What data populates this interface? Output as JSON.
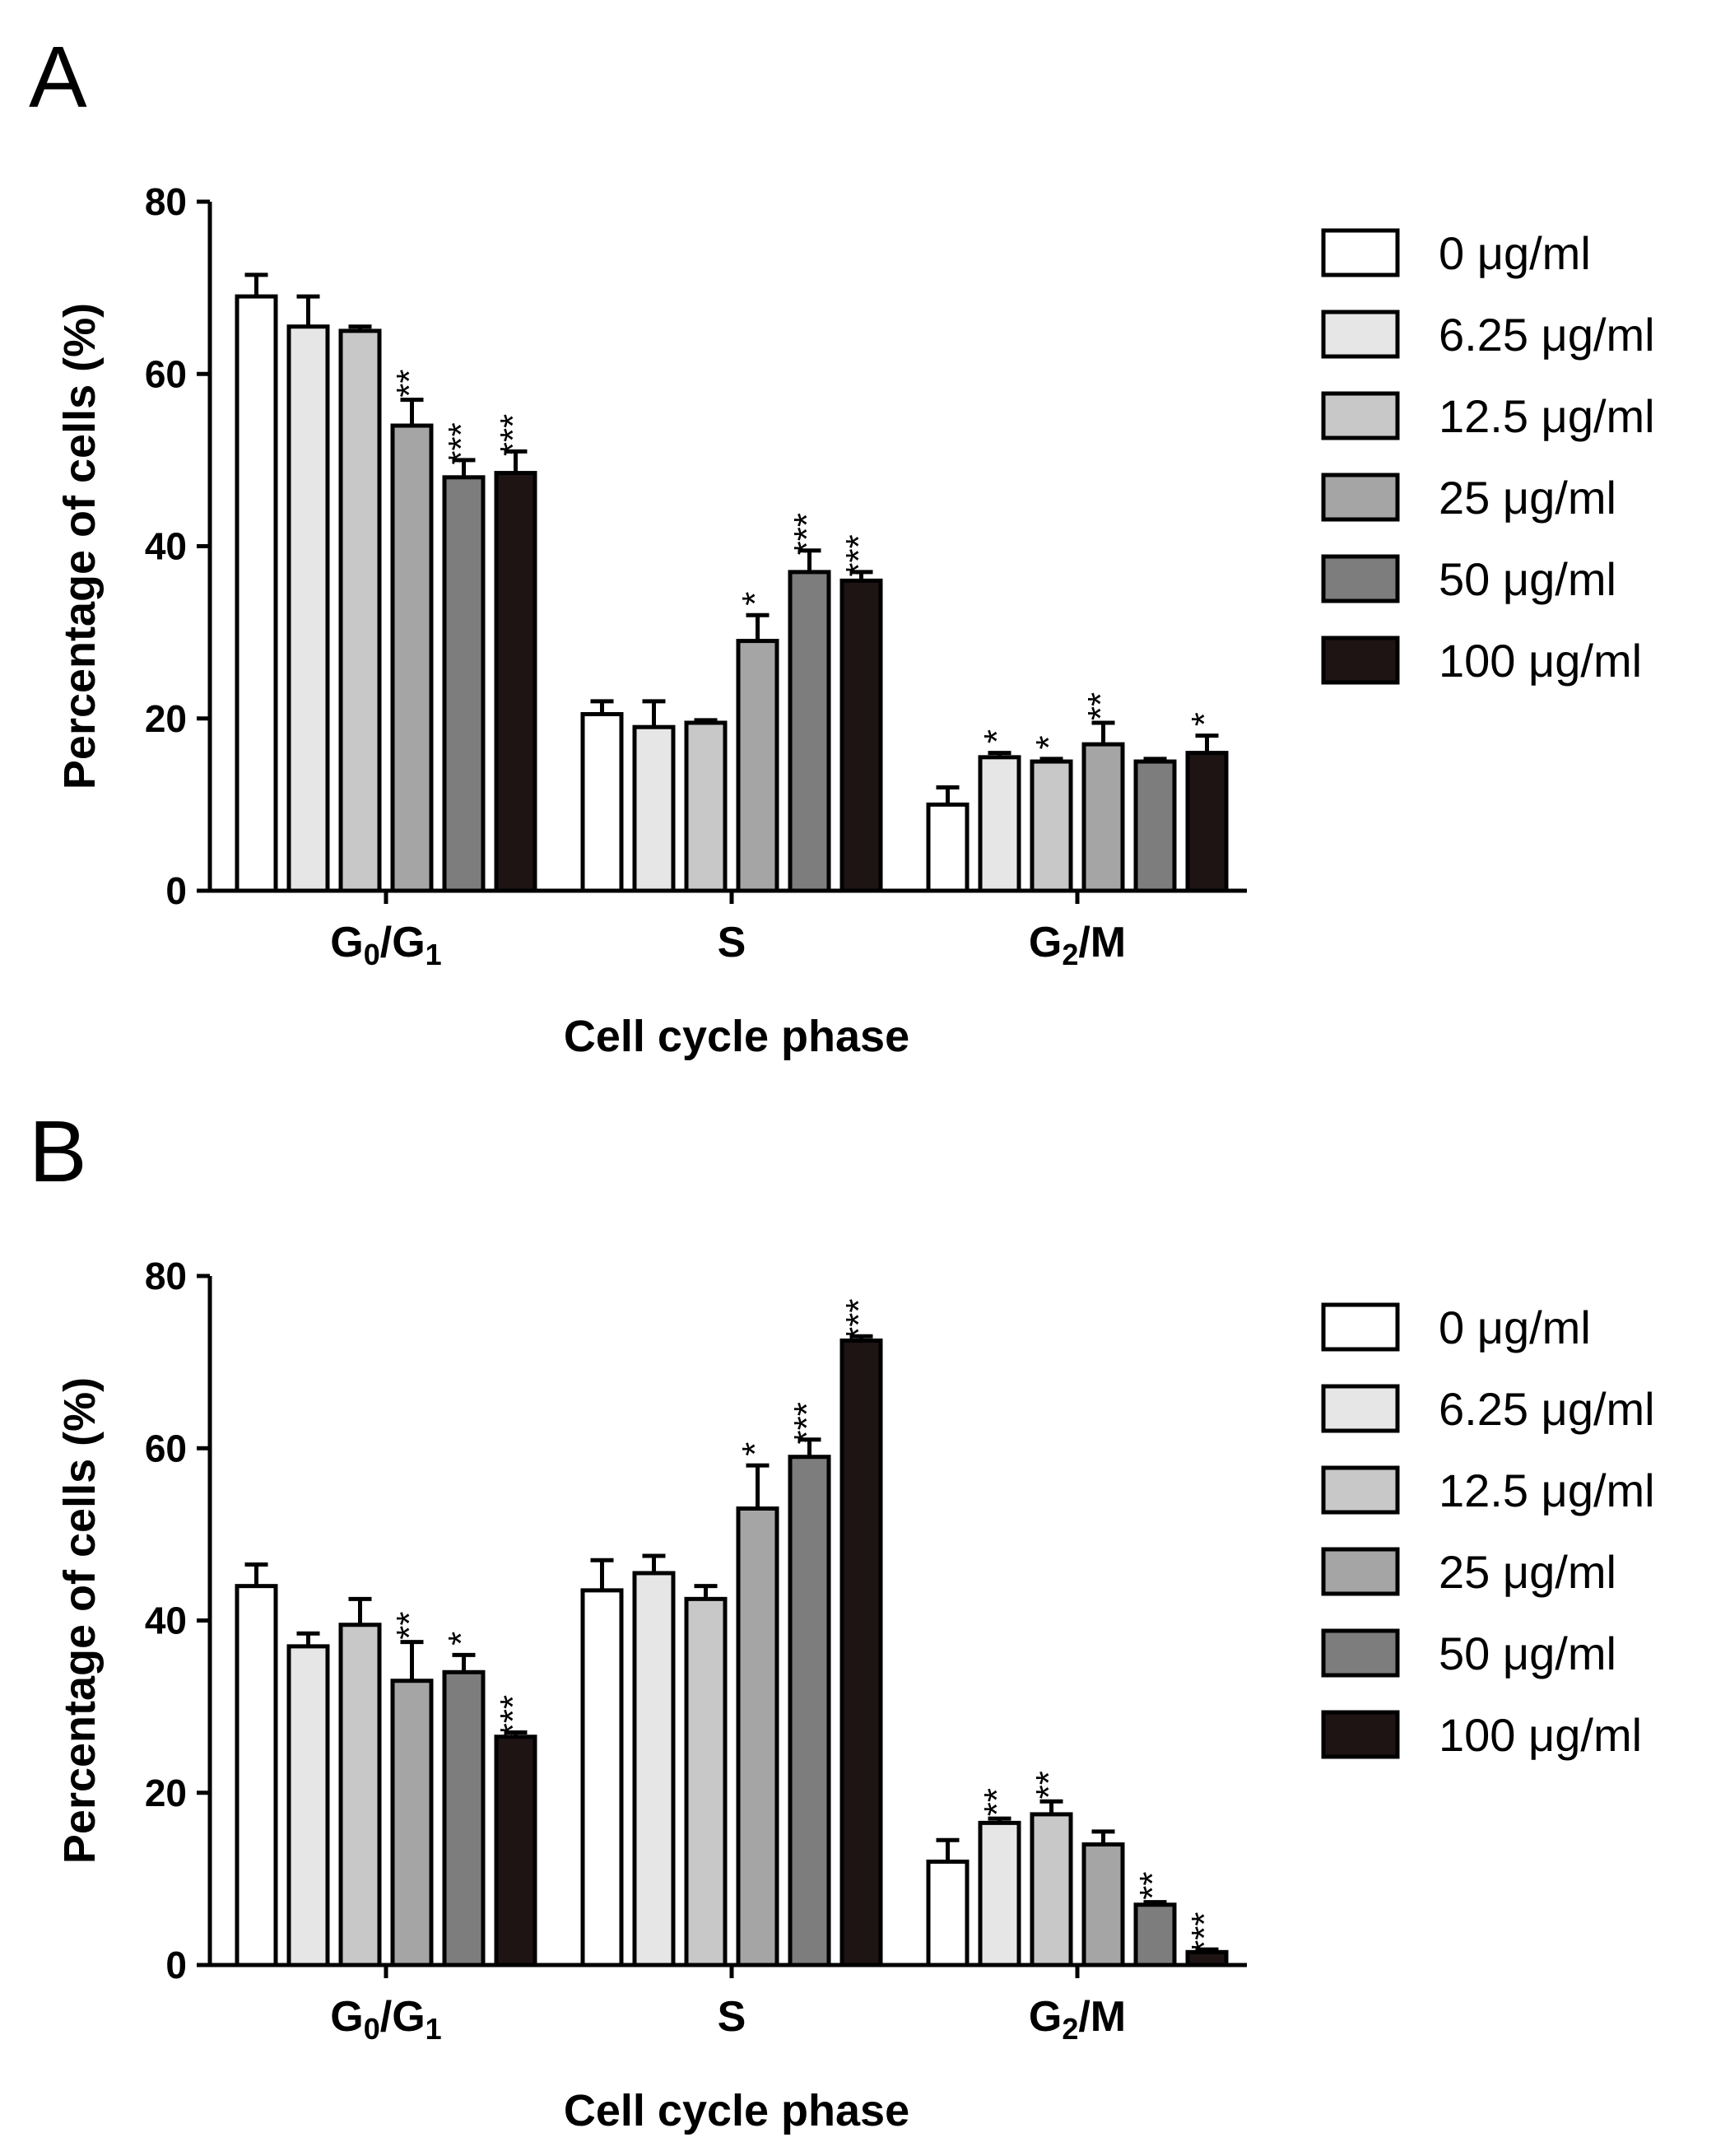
{
  "chart_data": [
    {
      "type": "bar",
      "panel": "A",
      "categories": [
        "G0/G1",
        "S",
        "G2/M"
      ],
      "category_labels": [
        {
          "main": "G",
          "sub": "0",
          "mid": "/G",
          "sub2": "1"
        },
        {
          "main": "S"
        },
        {
          "main": "G",
          "sub": "2",
          "mid": "/M"
        }
      ],
      "series": [
        {
          "name": "0 μg/ml",
          "color": "#ffffff",
          "values": [
            69,
            20.5,
            10
          ],
          "errors": [
            2.5,
            1.5,
            2
          ],
          "sig": [
            "",
            "",
            ""
          ]
        },
        {
          "name": "6.25 μg/ml",
          "color": "#e6e6e6",
          "values": [
            65.5,
            19,
            15.5
          ],
          "errors": [
            3.5,
            3,
            0.5
          ],
          "sig": [
            "",
            "",
            "*"
          ]
        },
        {
          "name": "12.5 μg/ml",
          "color": "#c8c8c8",
          "values": [
            65,
            19.5,
            15
          ],
          "errors": [
            0.5,
            0.3,
            0.3
          ],
          "sig": [
            "",
            "",
            "*"
          ]
        },
        {
          "name": "25 μg/ml",
          "color": "#a5a5a5",
          "values": [
            54,
            29,
            17
          ],
          "errors": [
            3,
            3,
            2.5
          ],
          "sig": [
            "**",
            "*",
            "**"
          ]
        },
        {
          "name": "50 μg/ml",
          "color": "#7d7d7d",
          "values": [
            48,
            37,
            15
          ],
          "errors": [
            2,
            2.5,
            0.3
          ],
          "sig": [
            "***",
            "***",
            ""
          ]
        },
        {
          "name": "100 μg/ml",
          "color": "#1e1414",
          "values": [
            48.5,
            36,
            16
          ],
          "errors": [
            2.5,
            1,
            2
          ],
          "sig": [
            "***",
            "***",
            "*"
          ]
        }
      ],
      "xlabel": "Cell cycle phase",
      "ylabel": "Percentage of cells (%)",
      "ylim": [
        0,
        80
      ],
      "yticks": [
        0,
        20,
        40,
        60,
        80
      ],
      "legend": "right",
      "grid": false
    },
    {
      "type": "bar",
      "panel": "B",
      "categories": [
        "G0/G1",
        "S",
        "G2/M"
      ],
      "category_labels": [
        {
          "main": "G",
          "sub": "0",
          "mid": "/G",
          "sub2": "1"
        },
        {
          "main": "S"
        },
        {
          "main": "G",
          "sub": "2",
          "mid": "/M"
        }
      ],
      "series": [
        {
          "name": "0 μg/ml",
          "color": "#ffffff",
          "values": [
            44,
            43.5,
            12
          ],
          "errors": [
            2.5,
            3.5,
            2.5
          ],
          "sig": [
            "",
            "",
            ""
          ]
        },
        {
          "name": "6.25 μg/ml",
          "color": "#e6e6e6",
          "values": [
            37,
            45.5,
            16.5
          ],
          "errors": [
            1.5,
            2,
            0.5
          ],
          "sig": [
            "",
            "",
            "**"
          ]
        },
        {
          "name": "12.5 μg/ml",
          "color": "#c8c8c8",
          "values": [
            39.5,
            42.5,
            17.5
          ],
          "errors": [
            3,
            1.5,
            1.5
          ],
          "sig": [
            "",
            "",
            "**"
          ]
        },
        {
          "name": "25 μg/ml",
          "color": "#a5a5a5",
          "values": [
            33,
            53,
            14
          ],
          "errors": [
            4.5,
            5,
            1.5
          ],
          "sig": [
            "**",
            "*",
            ""
          ]
        },
        {
          "name": "50 μg/ml",
          "color": "#7d7d7d",
          "values": [
            34,
            59,
            7
          ],
          "errors": [
            2,
            2,
            0.3
          ],
          "sig": [
            "*",
            "***",
            "**"
          ]
        },
        {
          "name": "100 μg/ml",
          "color": "#1e1414",
          "values": [
            26.5,
            72.5,
            1.5
          ],
          "errors": [
            0.5,
            0.5,
            0.3
          ],
          "sig": [
            "***",
            "***",
            "***"
          ]
        }
      ],
      "xlabel": "Cell cycle phase",
      "ylabel": "Percentage of cells (%)",
      "ylim": [
        0,
        80
      ],
      "yticks": [
        0,
        20,
        40,
        60,
        80
      ],
      "legend": "right",
      "grid": false
    }
  ]
}
